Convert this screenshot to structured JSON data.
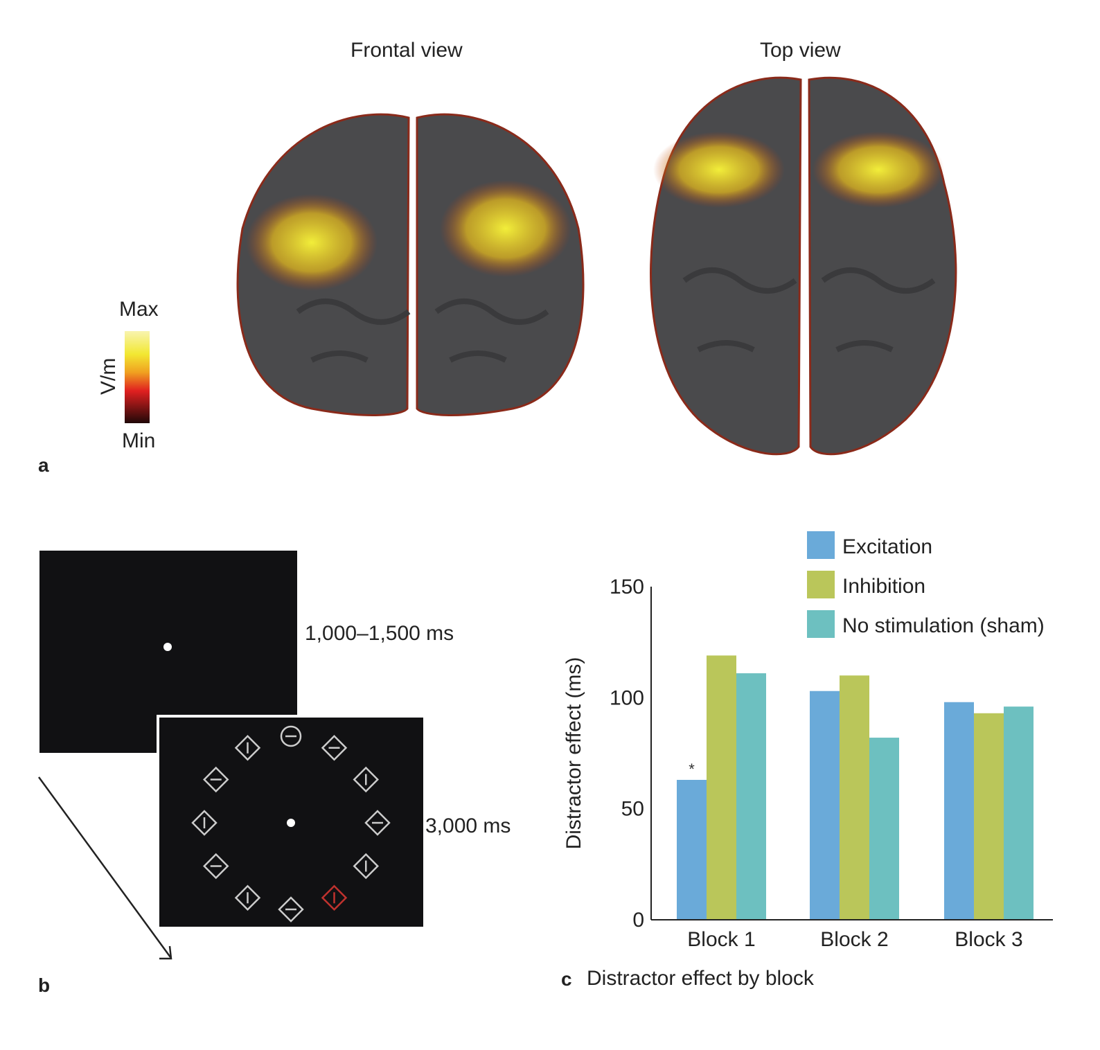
{
  "panel_a": {
    "label": "a",
    "frontal_title": "Frontal view",
    "top_title": "Top view",
    "colorbar": {
      "max_label": "Max",
      "min_label": "Min",
      "unit": "V/m"
    }
  },
  "panel_b": {
    "label": "b",
    "fixation_duration": "1,000–1,500 ms",
    "search_duration": "3,000 ms",
    "search_items": [
      {
        "shape": "circle",
        "bar": "horizontal",
        "color": "#cccccc"
      },
      {
        "shape": "diamond",
        "bar": "horizontal",
        "color": "#cccccc"
      },
      {
        "shape": "diamond",
        "bar": "vertical",
        "color": "#cccccc"
      },
      {
        "shape": "diamond",
        "bar": "horizontal",
        "color": "#cccccc"
      },
      {
        "shape": "diamond",
        "bar": "vertical",
        "color": "#cccccc"
      },
      {
        "shape": "diamond",
        "bar": "vertical",
        "color": "#c0322e"
      },
      {
        "shape": "diamond",
        "bar": "horizontal",
        "color": "#cccccc"
      },
      {
        "shape": "diamond",
        "bar": "vertical",
        "color": "#cccccc"
      },
      {
        "shape": "diamond",
        "bar": "horizontal",
        "color": "#cccccc"
      },
      {
        "shape": "diamond",
        "bar": "vertical",
        "color": "#cccccc"
      },
      {
        "shape": "diamond",
        "bar": "horizontal",
        "color": "#cccccc"
      },
      {
        "shape": "diamond",
        "bar": "vertical",
        "color": "#cccccc"
      }
    ]
  },
  "panel_c": {
    "label": "c",
    "caption": "Distractor effect by block"
  },
  "chart_data": {
    "type": "bar",
    "title": "Distractor effect by block",
    "xlabel": "",
    "ylabel": "Distractor effect (ms)",
    "ylim": [
      0,
      150
    ],
    "yticks": [
      "0",
      "50",
      "100",
      "150"
    ],
    "categories": [
      "Block 1",
      "Block 2",
      "Block 3"
    ],
    "series": [
      {
        "name": "Excitation",
        "color": "#6aaad9",
        "values": [
          63,
          103,
          98
        ]
      },
      {
        "name": "Inhibition",
        "color": "#bac65a",
        "values": [
          119,
          110,
          93
        ]
      },
      {
        "name": "No stimulation (sham)",
        "color": "#6dc0c0",
        "values": [
          111,
          82,
          96
        ]
      }
    ],
    "annotations": [
      {
        "category": "Block 1",
        "series": "Excitation",
        "text": "*"
      }
    ],
    "legend": "top-right",
    "grid": false
  }
}
